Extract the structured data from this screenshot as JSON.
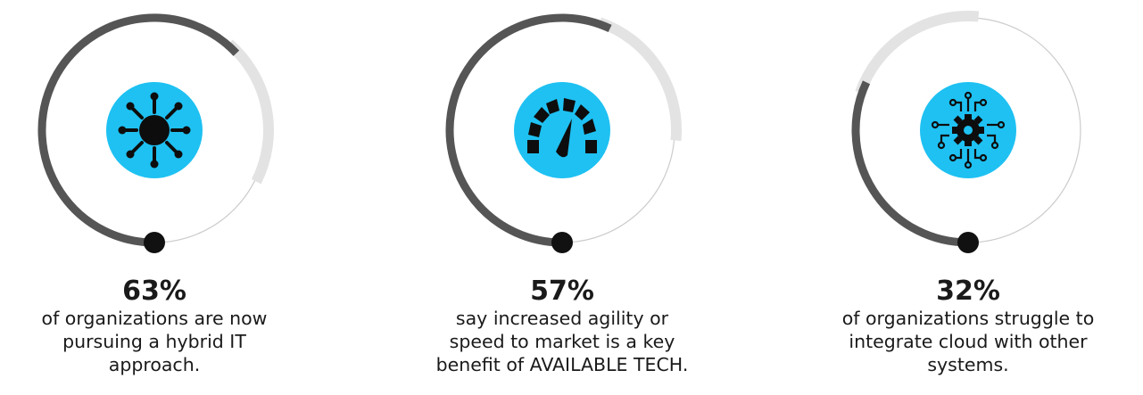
{
  "colors": {
    "progress": "#555555",
    "track": "#e3e3e3",
    "outline": "#cccccc",
    "icon_bg": "#1ec1f2",
    "icon_fg": "#0d0d0d",
    "dot": "#111111"
  },
  "stats": [
    {
      "percent_value": 63,
      "percent_label": "63%",
      "description_lines": [
        "of organizations are now",
        "pursuing a hybrid IT",
        "approach."
      ],
      "icon": "network-hub-icon"
    },
    {
      "percent_value": 57,
      "percent_label": "57%",
      "description_lines": [
        "say increased agility or",
        "speed to market is a key",
        "benefit of AVAILABLE TECH."
      ],
      "icon": "speedometer-icon"
    },
    {
      "percent_value": 32,
      "percent_label": "32%",
      "description_lines": [
        "of organizations struggle to",
        "integrate cloud with other",
        "systems."
      ],
      "icon": "circuit-gear-icon"
    }
  ]
}
